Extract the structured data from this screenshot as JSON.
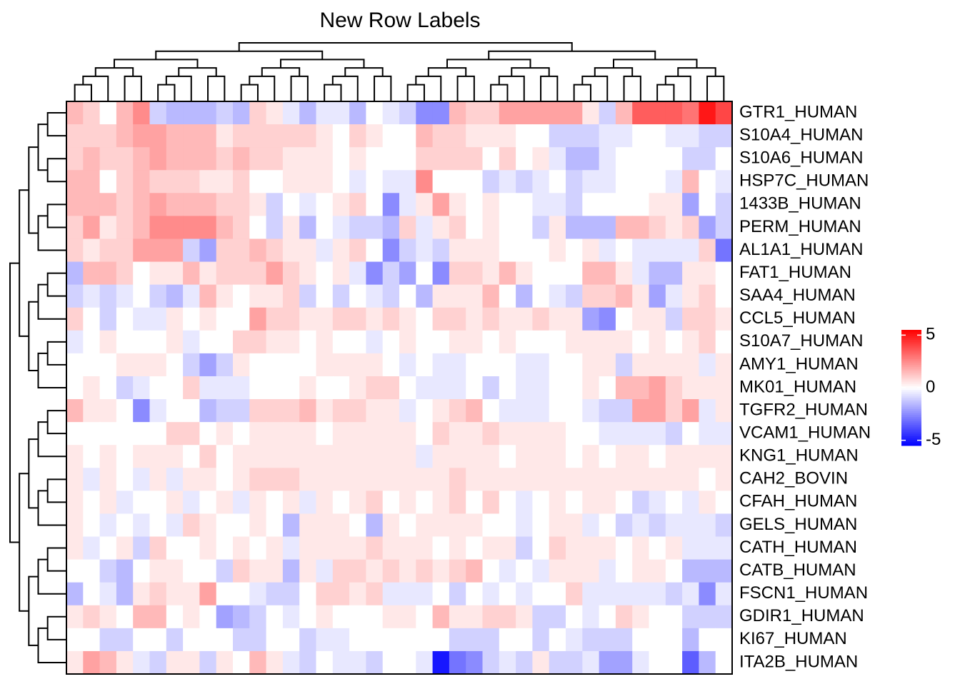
{
  "chart_data": {
    "type": "heatmap",
    "title": "New Row Labels",
    "rows": [
      "GTR1_HUMAN",
      "S10A4_HUMAN",
      "S10A6_HUMAN",
      "HSP7C_HUMAN",
      "1433B_HUMAN",
      "PERM_HUMAN",
      "AL1A1_HUMAN",
      "FAT1_HUMAN",
      "SAA4_HUMAN",
      "CCL5_HUMAN",
      "S10A7_HUMAN",
      "AMY1_HUMAN",
      "MK01_HUMAN",
      "TGFR2_HUMAN",
      "VCAM1_HUMAN",
      "KNG1_HUMAN",
      "CAH2_BOVIN",
      "CFAH_HUMAN",
      "GELS_HUMAN",
      "CATH_HUMAN",
      "CATB_HUMAN",
      "FSCN1_HUMAN",
      "GDIR1_HUMAN",
      "KI67_HUMAN",
      "ITA2B_HUMAN"
    ],
    "values": [
      [
        1.5,
        1,
        0,
        1.5,
        2.5,
        -1,
        -1.5,
        -1.5,
        -1.5,
        -1,
        -1.5,
        1,
        0.5,
        -0.5,
        -1.5,
        -0.5,
        -0.5,
        -1.5,
        0,
        -0.5,
        -1,
        -2.5,
        -2.5,
        1.5,
        1,
        1,
        2,
        2,
        2,
        2,
        2,
        0.5,
        -1,
        1.5,
        3.5,
        3.5,
        3.5,
        3,
        5,
        4
      ],
      [
        1,
        1,
        1,
        1.5,
        2,
        2,
        1.5,
        1.5,
        1.5,
        0.5,
        1,
        1,
        1,
        1,
        1,
        0.5,
        0,
        1,
        0.5,
        0,
        0,
        1.5,
        1,
        1,
        0.5,
        0.5,
        0.5,
        0,
        0,
        -1,
        -1,
        -1,
        -0.5,
        -0.5,
        0,
        0,
        -0.5,
        -0.5,
        -1,
        -1
      ],
      [
        1,
        1.5,
        1,
        1,
        1.5,
        2,
        1.5,
        1.5,
        1.5,
        1,
        1.5,
        1,
        1,
        0.5,
        0.5,
        0.5,
        0,
        0.5,
        0,
        0,
        0,
        1,
        1,
        1,
        1,
        0,
        1,
        0,
        0.5,
        -0.5,
        -1.5,
        -1.5,
        -0.5,
        0,
        0,
        0,
        0,
        -1,
        -1,
        0
      ],
      [
        1.5,
        1.5,
        0,
        1,
        1.5,
        1,
        1,
        1,
        0.5,
        0.5,
        1,
        0,
        0,
        0.5,
        0.5,
        0.5,
        0,
        -0.5,
        0,
        -0.5,
        -0.5,
        2.5,
        0,
        0,
        0,
        -1,
        -0.5,
        -1,
        -0.5,
        0,
        -1,
        -0.5,
        -0.5,
        0,
        0,
        0,
        -0.5,
        1.5,
        0,
        -0.5
      ],
      [
        1.5,
        1.5,
        1.5,
        1,
        1.5,
        2,
        1.5,
        1.5,
        1.5,
        1,
        1,
        0.5,
        -1,
        0,
        -0.5,
        0,
        0.5,
        1,
        0,
        -2.5,
        -0.5,
        0.5,
        2,
        0.5,
        0,
        0.5,
        0,
        0,
        -0.5,
        -0.5,
        -1,
        0,
        0,
        0,
        0,
        0.5,
        0.5,
        -2,
        0,
        -1
      ],
      [
        1,
        2,
        0.5,
        1,
        1.5,
        2.5,
        2.5,
        2.5,
        2.5,
        1.5,
        1,
        0,
        -1,
        0.5,
        -1.5,
        0,
        -0.5,
        -1,
        -1,
        -1.5,
        1,
        -0.5,
        0.5,
        1,
        0,
        0.5,
        0,
        0,
        -1,
        0.5,
        -1.5,
        -1.5,
        -1.5,
        1.5,
        1.5,
        1,
        0.5,
        1,
        -2,
        -1
      ],
      [
        1,
        0.5,
        1,
        1,
        2,
        2,
        2,
        -1,
        -2,
        1,
        1,
        1.5,
        1,
        0.5,
        0.5,
        -0.5,
        0.5,
        1,
        0,
        -2.5,
        -1,
        -0.5,
        -1,
        0.5,
        0.5,
        0.5,
        0,
        0,
        0,
        0.5,
        0,
        0.5,
        -0.5,
        0,
        -0.5,
        -0.5,
        -0.5,
        -0.5,
        1,
        -3
      ],
      [
        -1.5,
        1.5,
        1.5,
        1,
        0,
        0.5,
        0.5,
        1.5,
        0.5,
        1,
        1,
        1,
        2,
        1,
        0.5,
        0,
        0.5,
        -0.5,
        -2.5,
        -1,
        -2,
        0,
        -2.5,
        1,
        1,
        0.5,
        1.5,
        0.5,
        0,
        0,
        0,
        1.5,
        1.5,
        0.5,
        -0.5,
        -1.5,
        -1.5,
        0.5,
        0.5,
        0
      ],
      [
        -1,
        -0.5,
        -1,
        -0.5,
        0,
        -1,
        -1.5,
        -0.5,
        1.5,
        0.5,
        0,
        0.5,
        0.5,
        1,
        -1,
        0,
        -1,
        0,
        -0.5,
        -1,
        0,
        -1.5,
        0.5,
        0.5,
        0.5,
        1.5,
        0,
        -1.5,
        0,
        -0.5,
        -1,
        1,
        1,
        1.5,
        0.5,
        -2,
        -0.5,
        0.5,
        1,
        0
      ],
      [
        1,
        0,
        -1,
        0,
        -0.5,
        -0.5,
        0.5,
        0,
        0.5,
        0,
        0,
        2,
        1,
        1,
        0.5,
        0.5,
        1,
        1,
        0.5,
        1,
        0.5,
        0,
        1,
        1,
        0.5,
        1,
        0.5,
        0.5,
        1,
        0.5,
        0.5,
        -2,
        -2.5,
        0,
        0.5,
        0.5,
        -1,
        1,
        1,
        0.5
      ],
      [
        -0.5,
        0,
        0.5,
        0,
        0,
        0,
        0.5,
        -0.5,
        0,
        0,
        1,
        1,
        0.5,
        0.5,
        0,
        0.5,
        0,
        0,
        -0.5,
        0,
        0.5,
        0,
        0,
        0.5,
        0.5,
        0,
        0.5,
        0,
        0,
        0,
        0.5,
        0.5,
        0.5,
        0.5,
        0,
        0.5,
        0,
        0.5,
        1,
        0
      ],
      [
        0,
        0,
        0,
        0.5,
        0.5,
        0.5,
        0,
        -1,
        -2,
        -1,
        0.5,
        0,
        0,
        0,
        0,
        0.5,
        0.5,
        0.5,
        0.5,
        0,
        -0.5,
        0,
        -0.5,
        -0.5,
        0,
        0,
        0,
        -0.5,
        -0.5,
        0,
        0,
        0.5,
        0.5,
        -1,
        0.5,
        0.5,
        0.5,
        0.5,
        -0.5,
        0.5
      ],
      [
        0,
        0.5,
        0,
        -1,
        -0.5,
        0,
        0,
        1,
        -0.5,
        -0.5,
        -0.5,
        0,
        0,
        0,
        0.5,
        0,
        0,
        0.5,
        1,
        1,
        0,
        -0.5,
        -0.5,
        -0.5,
        0,
        -1,
        0,
        -0.5,
        -0.5,
        0,
        0,
        0.5,
        0,
        1.5,
        1.5,
        2,
        1,
        0.5,
        0.5,
        0.5
      ],
      [
        1.5,
        0.5,
        0.5,
        0,
        -2.5,
        -0.5,
        0,
        0,
        -1.5,
        -1,
        -1,
        1,
        1,
        1,
        1.5,
        0.5,
        1,
        1,
        0.5,
        0.5,
        -0.5,
        0,
        0.5,
        1,
        1.5,
        0,
        -0.5,
        -0.5,
        -0.5,
        0,
        0,
        -0.5,
        -1,
        -1,
        2,
        2,
        1,
        2,
        -0.5,
        0.5
      ],
      [
        0,
        0,
        0,
        0,
        0,
        0,
        1,
        1,
        0,
        0.5,
        0,
        0.5,
        0.5,
        0.5,
        0.5,
        0,
        0.5,
        0.5,
        0.5,
        0.5,
        0.5,
        0,
        1,
        0.5,
        0.5,
        1,
        0.5,
        0.5,
        0.5,
        0.5,
        0,
        0,
        -0.5,
        -0.5,
        -0.5,
        -0.5,
        -1,
        0,
        -0.5,
        -0.5
      ],
      [
        0.5,
        0,
        0.5,
        0,
        0.5,
        0.5,
        0.5,
        0,
        1,
        0,
        0.5,
        0.5,
        0.5,
        0.5,
        0.5,
        0.5,
        0.5,
        0.5,
        0.5,
        0.5,
        0.5,
        -0.5,
        0.5,
        0.5,
        0.5,
        0.5,
        0,
        0.5,
        0.5,
        0.5,
        0,
        0.5,
        0,
        0.5,
        0.5,
        0,
        0.5,
        0.5,
        0.5,
        0.5
      ],
      [
        0.5,
        -0.5,
        0.5,
        0,
        -0.5,
        0.5,
        -0.5,
        0.5,
        0.5,
        0,
        0.5,
        1,
        1,
        1,
        0.5,
        0.5,
        0.5,
        0.5,
        0.5,
        0.5,
        0.5,
        0.5,
        0.5,
        1,
        0.5,
        0.5,
        0.5,
        0.5,
        0.5,
        0.5,
        0.5,
        0.5,
        0.5,
        0.5,
        0.5,
        0.5,
        0.5,
        0.5,
        0,
        0.5
      ],
      [
        0.5,
        0,
        0.5,
        -0.5,
        0,
        0,
        0.5,
        -0.5,
        0,
        0.5,
        -0.5,
        0.5,
        0,
        0.5,
        -0.5,
        0.5,
        0,
        0.5,
        1,
        0,
        0.5,
        0,
        0.5,
        1,
        0,
        1,
        0,
        -0.5,
        0,
        0.5,
        0,
        0.5,
        0.5,
        0,
        -1,
        -0.5,
        0,
        -0.5,
        0.5,
        0
      ],
      [
        0.5,
        0,
        -0.5,
        0,
        -0.5,
        0,
        -0.5,
        1,
        0.5,
        0,
        0,
        0.5,
        0,
        -1.5,
        0.5,
        0.5,
        0.5,
        0,
        -1.5,
        0.5,
        0,
        0.5,
        0.5,
        0.5,
        0.5,
        0,
        0,
        -0.5,
        0,
        0.5,
        0.5,
        -0.5,
        0,
        -1,
        -0.5,
        -1,
        -0.5,
        -0.5,
        -0.5,
        -1
      ],
      [
        0.5,
        -0.5,
        0,
        0.5,
        -1,
        1,
        0,
        0,
        0.5,
        0,
        0.5,
        0,
        0.5,
        -0.5,
        0.5,
        0.5,
        0.5,
        0.5,
        1,
        0.5,
        0.5,
        0.5,
        0,
        0.5,
        0,
        0.5,
        0.5,
        -1,
        0,
        1,
        0.5,
        0.5,
        0.5,
        0,
        0.5,
        0,
        0.5,
        -0.5,
        -0.5,
        -0.5
      ],
      [
        0,
        0,
        -1,
        -1.5,
        0,
        0.5,
        0.5,
        0,
        0,
        -1,
        1,
        0.5,
        0.5,
        -1.5,
        0.5,
        -0.5,
        1,
        1,
        0.5,
        1,
        0.5,
        1,
        0.5,
        1,
        1.5,
        0,
        -0.5,
        0,
        -0.5,
        0.5,
        0.5,
        0.5,
        -0.5,
        0,
        0.5,
        0.5,
        0,
        -1.5,
        -1.5,
        -1.5
      ],
      [
        -1.5,
        0,
        -0.5,
        -1.5,
        0.5,
        1,
        0.5,
        0.5,
        2,
        0,
        0,
        -0.5,
        -1,
        -1,
        0,
        1,
        1,
        0.5,
        1,
        -0.5,
        -0.5,
        -0.5,
        0,
        -1,
        0,
        -0.5,
        0,
        -0.5,
        0,
        0,
        1,
        -0.5,
        -0.5,
        -0.5,
        -0.5,
        -0.5,
        -1,
        -0.5,
        -2.5,
        -0.5
      ],
      [
        0.5,
        1,
        0.5,
        0,
        1.5,
        1.5,
        0,
        0.5,
        0,
        -2,
        -1.5,
        -1,
        0,
        -0.5,
        0,
        0.5,
        0,
        0,
        0,
        0.5,
        0.5,
        0,
        1.5,
        0.5,
        0.5,
        1,
        1,
        0.5,
        -1,
        -1,
        0,
        -0.5,
        0,
        1,
        0.5,
        0,
        0,
        -1,
        -1,
        -1
      ],
      [
        0,
        0,
        -1,
        -1,
        0,
        0,
        -1,
        0,
        0,
        0,
        -1,
        -1,
        0,
        0,
        -1,
        -0.5,
        -0.5,
        0,
        0,
        0,
        0,
        0,
        0,
        -1,
        -1,
        -1,
        0,
        0,
        -1,
        0,
        -0.5,
        -1,
        -1,
        -1,
        0,
        0,
        0,
        -1.5,
        0,
        0
      ],
      [
        0.5,
        2,
        1.5,
        0.5,
        -0.5,
        -1,
        0.5,
        0.5,
        -1,
        0.5,
        0,
        1.5,
        0.5,
        -0.5,
        -1,
        0,
        -0.5,
        -0.5,
        -1,
        0,
        0,
        -0.5,
        -5,
        -3,
        -2.5,
        -1,
        -0.5,
        -1,
        0.5,
        -1,
        -1,
        -0.5,
        -2,
        -2,
        -0.5,
        0,
        0,
        -3.5,
        -1.5,
        0
      ]
    ],
    "colors": {
      "low": "#0000ff",
      "mid": "#ffffff",
      "high": "#ff0000"
    },
    "zlim": [
      -5.5,
      5.5
    ],
    "zticks": [
      5,
      0,
      -5
    ]
  }
}
